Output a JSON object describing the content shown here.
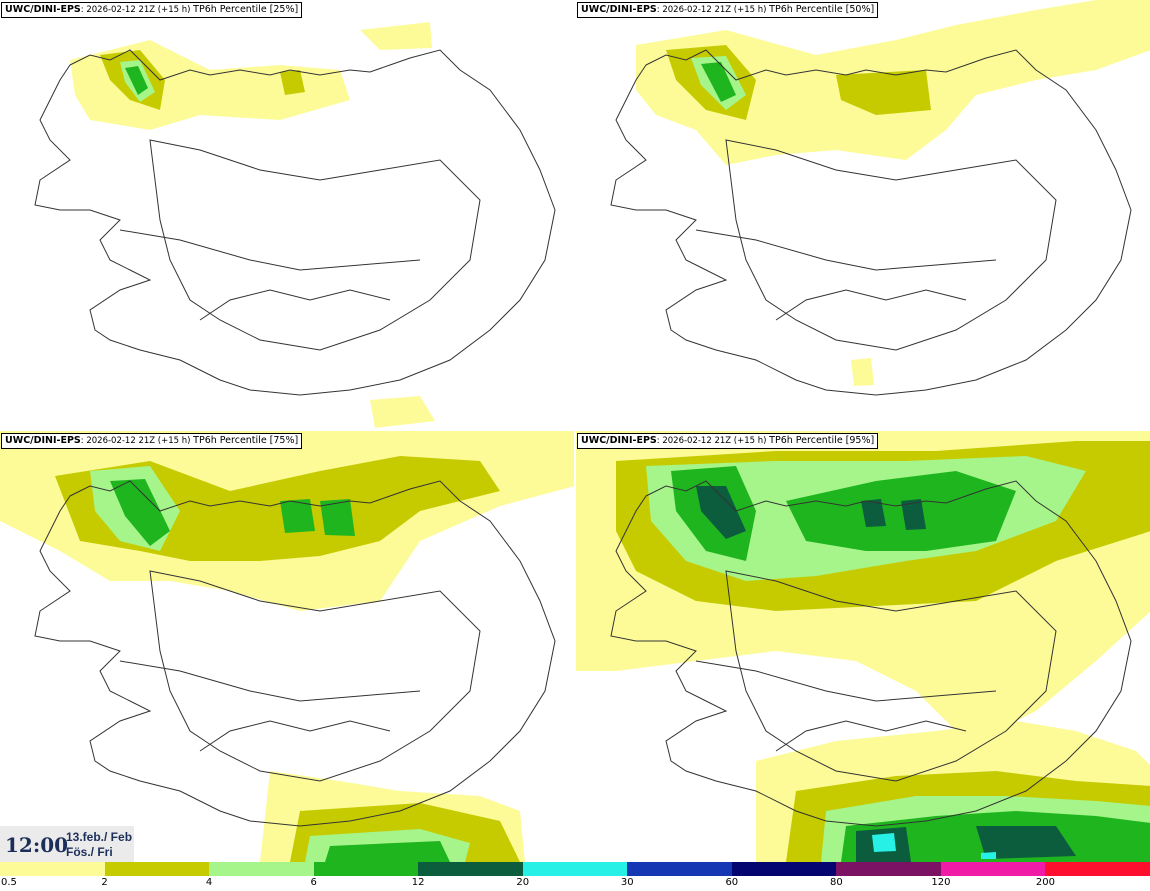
{
  "panels": [
    {
      "model": "UWC/DINI-EPS",
      "info": ": 2026-02-12 21Z",
      "lead": "(+15 h)",
      "product": "TP6h Percentile [25%]"
    },
    {
      "model": "UWC/DINI-EPS",
      "info": ": 2026-02-12 21Z",
      "lead": "(+15 h)",
      "product": "TP6h Percentile [50%]"
    },
    {
      "model": "UWC/DINI-EPS",
      "info": ": 2026-02-12 21Z",
      "lead": "(+15 h)",
      "product": "TP6h Percentile [75%]"
    },
    {
      "model": "UWC/DINI-EPS",
      "info": ": 2026-02-12 21Z",
      "lead": "(+15 h)",
      "product": "TP6h Percentile [95%]"
    }
  ],
  "time": {
    "clock": "12:00",
    "date": "13.feb./ Feb",
    "day": "Fös./ Fri"
  },
  "legend": {
    "labels": [
      "0.5",
      "2",
      "4",
      "6",
      "12",
      "20",
      "30",
      "60",
      "80",
      "120",
      "200"
    ],
    "colors": [
      "#fdfb98",
      "#c6cb00",
      "#a6f58a",
      "#1fb51f",
      "#0c5c3e",
      "#27f1e6",
      "#1537b3",
      "#040570",
      "#7c1263",
      "#f01ba7",
      "#fe0f2e"
    ]
  }
}
